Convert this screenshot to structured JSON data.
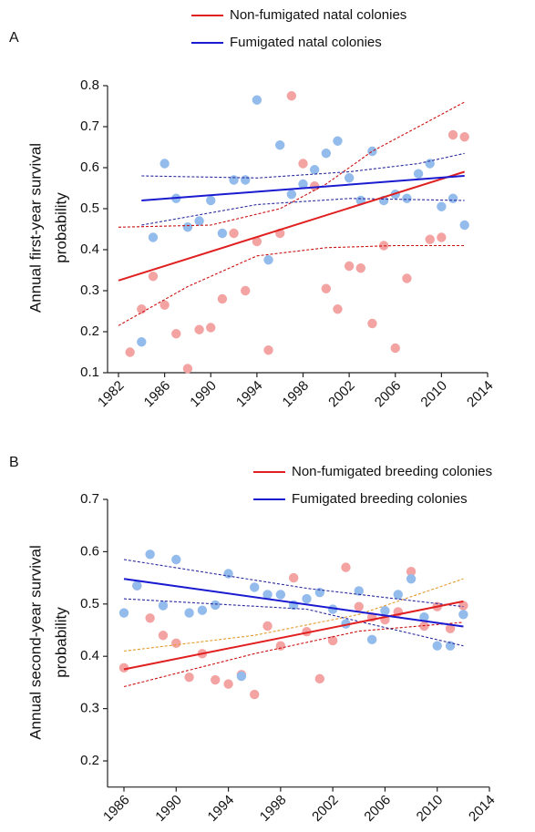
{
  "chart_data": [
    {
      "type": "scatter",
      "panel_label": "A",
      "ylabel": [
        "Annual first-year survival",
        "probability"
      ],
      "xlim": [
        1982,
        2014
      ],
      "xticks": [
        1982,
        1986,
        1990,
        1994,
        1998,
        2002,
        2006,
        2010,
        2014
      ],
      "ylim": [
        0.1,
        0.8
      ],
      "yticks": [
        0.1,
        0.2,
        0.3,
        0.4,
        0.5,
        0.6,
        0.7,
        0.8
      ],
      "legend": "top-center",
      "series": [
        {
          "style": "points",
          "color": "#f4a3a3",
          "x": [
            1983,
            1984,
            1985,
            1986,
            1987,
            1988,
            1989,
            1990,
            1991,
            1992,
            1993,
            1994,
            1995,
            1996,
            1997,
            1998,
            1999,
            2000,
            2001,
            2002,
            2003,
            2004,
            2005,
            2006,
            2007,
            2009,
            2010,
            2011,
            2012
          ],
          "values": [
            0.15,
            0.255,
            0.335,
            0.265,
            0.195,
            0.11,
            0.205,
            0.21,
            0.28,
            0.44,
            0.3,
            0.42,
            0.155,
            0.44,
            0.775,
            0.61,
            0.555,
            0.305,
            0.255,
            0.36,
            0.355,
            0.22,
            0.41,
            0.16,
            0.33,
            0.425,
            0.43,
            0.68,
            0.675
          ]
        },
        {
          "style": "points",
          "color": "#93bbeb",
          "x": [
            1984,
            1985,
            1986,
            1987,
            1988,
            1989,
            1990,
            1991,
            1992,
            1993,
            1994,
            1995,
            1996,
            1997,
            1998,
            1999,
            2000,
            2001,
            2002,
            2003,
            2004,
            2005,
            2006,
            2007,
            2008,
            2009,
            2010,
            2011,
            2012
          ],
          "values": [
            0.175,
            0.43,
            0.61,
            0.525,
            0.455,
            0.47,
            0.52,
            0.44,
            0.57,
            0.57,
            0.765,
            0.375,
            0.655,
            0.535,
            0.56,
            0.595,
            0.635,
            0.665,
            0.575,
            0.52,
            0.64,
            0.52,
            0.535,
            0.525,
            0.585,
            0.61,
            0.505,
            0.525,
            0.46
          ]
        },
        {
          "style": "dashed",
          "color": "#cc1010",
          "x": [
            1982,
            1990,
            1996,
            2000,
            2004,
            2008,
            2012
          ],
          "values": [
            0.455,
            0.46,
            0.5,
            0.56,
            0.64,
            0.7,
            0.76
          ]
        },
        {
          "style": "dashed",
          "color": "#cc1010",
          "x": [
            1982,
            1988,
            1994,
            2000,
            2006,
            2012
          ],
          "values": [
            0.215,
            0.31,
            0.385,
            0.405,
            0.41,
            0.41
          ]
        },
        {
          "style": "dashed",
          "color": "#2a2aa0",
          "x": [
            1984,
            1994,
            2002,
            2008,
            2012
          ],
          "values": [
            0.58,
            0.575,
            0.59,
            0.61,
            0.635
          ]
        },
        {
          "style": "dashed",
          "color": "#2a2aa0",
          "x": [
            1984,
            1994,
            2002,
            2008,
            2012
          ],
          "values": [
            0.46,
            0.51,
            0.525,
            0.522,
            0.52
          ]
        },
        {
          "style": "solid",
          "name": "Non-fumigated natal colonies",
          "color": "#e02020",
          "x": [
            1982,
            2012
          ],
          "values": [
            0.325,
            0.59
          ]
        },
        {
          "style": "solid",
          "name": "Fumigated natal colonies",
          "color": "#1a1ad0",
          "x": [
            1984,
            2012
          ],
          "values": [
            0.52,
            0.58
          ]
        }
      ]
    },
    {
      "type": "scatter",
      "panel_label": "B",
      "ylabel": [
        "Annual second-year survival",
        "probability"
      ],
      "xlim": [
        1986,
        2014
      ],
      "xticks": [
        1986,
        1990,
        1994,
        1998,
        2002,
        2006,
        2010,
        2014
      ],
      "ylim": [
        0.15,
        0.7
      ],
      "yticks": [
        0.2,
        0.3,
        0.4,
        0.5,
        0.6,
        0.7
      ],
      "legend": "top-right",
      "series": [
        {
          "style": "points",
          "color": "#f4a3a3",
          "x": [
            1986,
            1987,
            1988,
            1989,
            1990,
            1991,
            1992,
            1993,
            1994,
            1995,
            1996,
            1997,
            1998,
            1999,
            2000,
            2001,
            2002,
            2003,
            2004,
            2005,
            2006,
            2007,
            2008,
            2009,
            2010,
            2011,
            2012
          ],
          "values": [
            0.378,
            0.535,
            0.473,
            0.44,
            0.425,
            0.36,
            0.405,
            0.355,
            0.347,
            0.365,
            0.327,
            0.458,
            0.42,
            0.55,
            0.447,
            0.357,
            0.43,
            0.57,
            0.495,
            0.475,
            0.47,
            0.485,
            0.562,
            0.458,
            0.495,
            0.453,
            0.497
          ]
        },
        {
          "style": "points",
          "color": "#93bbeb",
          "x": [
            1986,
            1987,
            1988,
            1989,
            1990,
            1991,
            1992,
            1993,
            1994,
            1995,
            1996,
            1997,
            1998,
            1999,
            2000,
            2001,
            2002,
            2003,
            2004,
            2005,
            2006,
            2007,
            2008,
            2009,
            2010,
            2011,
            2012
          ],
          "values": [
            0.483,
            0.535,
            0.595,
            0.497,
            0.585,
            0.483,
            0.488,
            0.498,
            0.558,
            0.362,
            0.532,
            0.518,
            0.518,
            0.498,
            0.51,
            0.522,
            0.49,
            0.462,
            0.525,
            0.432,
            0.487,
            0.518,
            0.548,
            0.475,
            0.42,
            0.42,
            0.48
          ]
        },
        {
          "style": "dashed",
          "color": "#e39a2a",
          "x": [
            1986,
            1996,
            2004,
            2012
          ],
          "values": [
            0.41,
            0.44,
            0.48,
            0.548
          ]
        },
        {
          "style": "dashed",
          "color": "#cc1010",
          "x": [
            1986,
            1996,
            2004,
            2012
          ],
          "values": [
            0.342,
            0.405,
            0.448,
            0.465
          ]
        },
        {
          "style": "dashed",
          "color": "#2a2aa0",
          "x": [
            1986,
            2000,
            2012
          ],
          "values": [
            0.585,
            0.53,
            0.495
          ]
        },
        {
          "style": "dashed",
          "color": "#2a2aa0",
          "x": [
            1986,
            2000,
            2012
          ],
          "values": [
            0.51,
            0.49,
            0.42
          ]
        },
        {
          "style": "solid",
          "name": "Non-fumigated breeding colonies",
          "color": "#e02020",
          "x": [
            1986,
            2012
          ],
          "values": [
            0.375,
            0.505
          ]
        },
        {
          "style": "solid",
          "name": "Fumigated breeding colonies",
          "color": "#1a1ad0",
          "x": [
            1986,
            2012
          ],
          "values": [
            0.548,
            0.457
          ]
        }
      ]
    }
  ]
}
